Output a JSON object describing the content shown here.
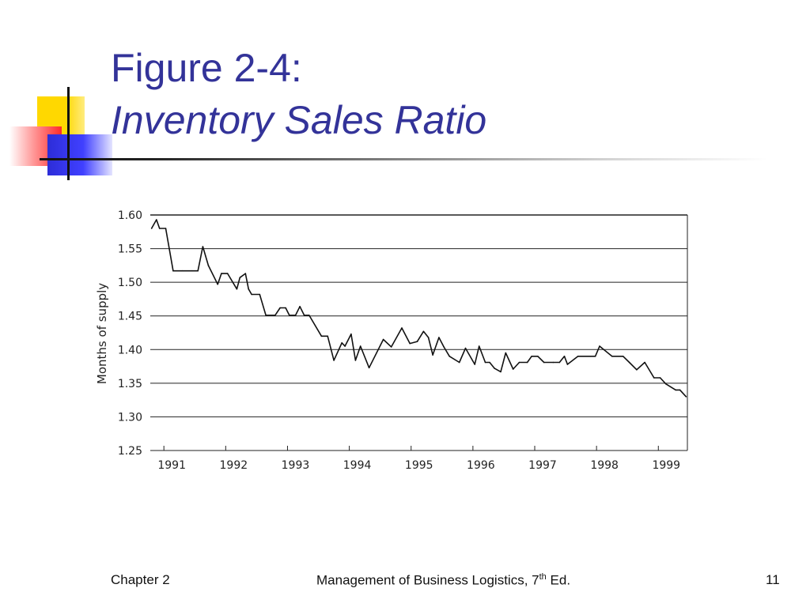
{
  "slide": {
    "title_line1": "Figure 2-4:",
    "title_line2": "Inventory Sales Ratio",
    "colors": {
      "title": "#333399",
      "accent_yellow": "#ffd800",
      "accent_red": "#ff2a2a",
      "accent_blue": "#2d2dd8"
    }
  },
  "footer": {
    "left": "Chapter 2",
    "center_main": "Management of Business Logistics, 7",
    "center_sup": "th",
    "center_end": " Ed.",
    "page_number": "11"
  },
  "chart_data": {
    "type": "line",
    "title": "",
    "xlabel": "",
    "ylabel": "Months of supply",
    "ylim": [
      1.25,
      1.6
    ],
    "xlim": [
      1990.78,
      1999.47
    ],
    "yticks": [
      "1.60",
      "1.55",
      "1.50",
      "1.45",
      "1.40",
      "1.35",
      "1.30",
      "1.25"
    ],
    "xticks": [
      "1991",
      "1992",
      "1993",
      "1994",
      "1995",
      "1996",
      "1997",
      "1998",
      "1999"
    ],
    "grid": true,
    "series": [
      {
        "name": "",
        "x": [
          1990.8,
          1990.88,
          1990.93,
          1991.03,
          1991.15,
          1991.3,
          1991.45,
          1991.55,
          1991.63,
          1991.72,
          1991.87,
          1991.93,
          1992.03,
          1992.18,
          1992.23,
          1992.32,
          1992.37,
          1992.42,
          1992.55,
          1992.65,
          1992.8,
          1992.88,
          1992.97,
          1993.03,
          1993.13,
          1993.2,
          1993.27,
          1993.35,
          1993.55,
          1993.65,
          1993.75,
          1993.88,
          1993.93,
          1994.03,
          1994.1,
          1994.18,
          1994.32,
          1994.55,
          1994.68,
          1994.85,
          1994.98,
          1995.1,
          1995.2,
          1995.28,
          1995.35,
          1995.45,
          1995.53,
          1995.62,
          1995.78,
          1995.88,
          1996.03,
          1996.1,
          1996.2,
          1996.27,
          1996.35,
          1996.45,
          1996.53,
          1996.65,
          1996.75,
          1996.88,
          1996.95,
          1997.05,
          1997.15,
          1997.3,
          1997.4,
          1997.48,
          1997.53,
          1997.7,
          1997.9,
          1997.98,
          1998.05,
          1998.25,
          1998.43,
          1998.53,
          1998.65,
          1998.78,
          1998.93,
          1999.03,
          1999.12,
          1999.28,
          1999.35,
          1999.45
        ],
        "values": [
          1.58,
          1.593,
          1.58,
          1.58,
          1.517,
          1.517,
          1.517,
          1.517,
          1.553,
          1.525,
          1.497,
          1.513,
          1.513,
          1.49,
          1.507,
          1.513,
          1.49,
          1.482,
          1.482,
          1.451,
          1.451,
          1.462,
          1.462,
          1.451,
          1.451,
          1.464,
          1.451,
          1.451,
          1.42,
          1.42,
          1.384,
          1.41,
          1.405,
          1.423,
          1.384,
          1.405,
          1.373,
          1.415,
          1.404,
          1.432,
          1.409,
          1.412,
          1.427,
          1.418,
          1.392,
          1.418,
          1.404,
          1.39,
          1.381,
          1.402,
          1.378,
          1.405,
          1.381,
          1.381,
          1.372,
          1.367,
          1.395,
          1.371,
          1.381,
          1.381,
          1.39,
          1.39,
          1.381,
          1.381,
          1.381,
          1.39,
          1.378,
          1.39,
          1.39,
          1.39,
          1.405,
          1.39,
          1.39,
          1.381,
          1.37,
          1.381,
          1.358,
          1.358,
          1.349,
          1.34,
          1.34,
          1.33
        ]
      }
    ]
  }
}
